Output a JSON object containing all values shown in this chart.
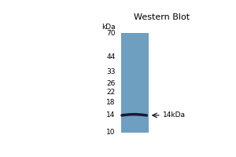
{
  "title": "Western Blot",
  "background_color": "#ffffff",
  "gel_color": "#6e9ec0",
  "fig_bg": "#ffffff",
  "kda_labels": [
    "70",
    "44",
    "33",
    "26",
    "22",
    "18",
    "14",
    "10"
  ],
  "kda_values": [
    70,
    44,
    33,
    26,
    22,
    18,
    14,
    10
  ],
  "band_kda": 14,
  "band_label": "←14kDa",
  "band_color": "#1a1a2e",
  "title_fontsize": 8,
  "label_fontsize": 6.5,
  "marker_fontsize": 6.5
}
